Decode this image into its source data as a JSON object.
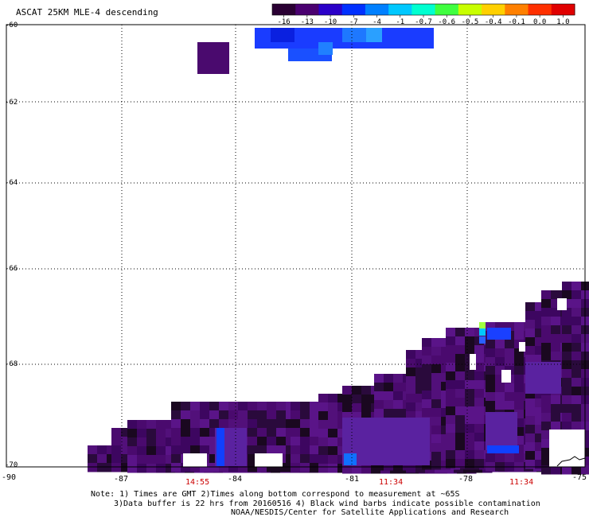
{
  "title": "ASCAT 25KM MLE-4 descending",
  "colorbar": {
    "labels": [
      "-16",
      "-13",
      "-10",
      "-7",
      "-4",
      "-1",
      "-0.7",
      "-0.6",
      "-0.5",
      "-0.4",
      "-0.1",
      "0.0",
      "1.0"
    ],
    "colors": [
      "#2a0033",
      "#4a0070",
      "#2a00c8",
      "#0030ff",
      "#0080ff",
      "#00c8ff",
      "#00ffd0",
      "#40ff40",
      "#c8ff00",
      "#ffd000",
      "#ff8000",
      "#ff3000",
      "#e00000"
    ]
  },
  "lat_labels": [
    "-60",
    "-62",
    "-64",
    "-66",
    "-68",
    "-70"
  ],
  "lon_labels": [
    "-90",
    "-87",
    "-84",
    "-81",
    "-78",
    "-75"
  ],
  "times": [
    "14:55",
    "11:34",
    "11:34"
  ],
  "notes": {
    "line1": "Note: 1) Times are GMT 2)Times along bottom correspond to measurement at ~65S",
    "line2": "3)Data buffer is 22 hrs from 20160516 4) Black wind barbs indicate possible contamination",
    "line3": "NOAA/NESDIS/Center for Satellite Applications and Research"
  }
}
